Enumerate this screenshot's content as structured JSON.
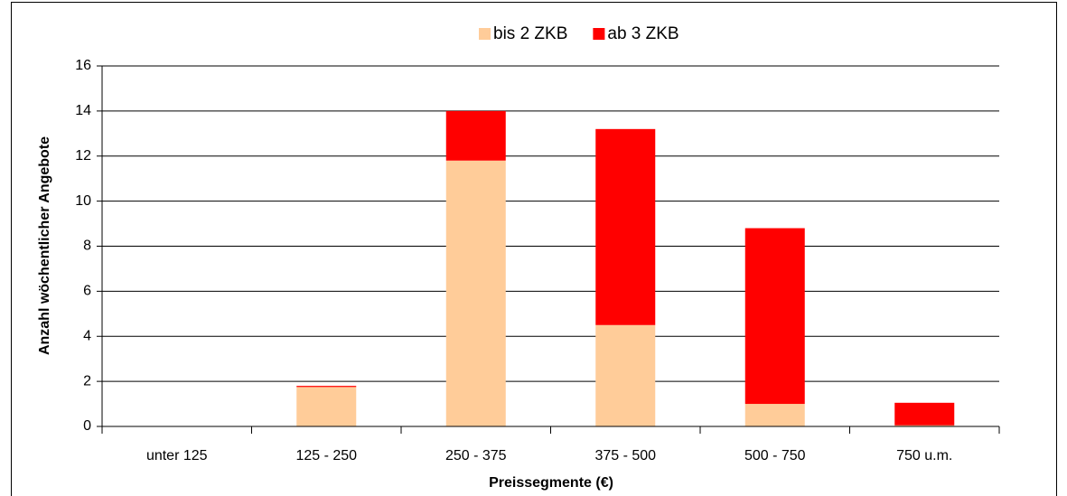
{
  "chart_data": {
    "type": "stacked_bar",
    "x_label": "Preissegmente (€)",
    "y_label": "Anzahl wöchentlicher Angebote",
    "categories": [
      "unter 125",
      "125 - 250",
      "250 - 375",
      "375 - 500",
      "500 - 750",
      "750 u.m."
    ],
    "series": [
      {
        "name": "bis 2 ZKB",
        "color": "#ffcc99",
        "values": [
          0,
          1.75,
          11.8,
          4.5,
          1.0,
          0.05
        ]
      },
      {
        "name": "ab 3 ZKB",
        "color": "#ff0000",
        "values": [
          0,
          0.05,
          2.2,
          8.7,
          7.8,
          1.0
        ]
      }
    ],
    "ylim": [
      0,
      16
    ],
    "yticks": [
      0,
      2,
      4,
      6,
      8,
      10,
      12,
      14,
      16
    ],
    "grid": true,
    "legend": "top"
  }
}
